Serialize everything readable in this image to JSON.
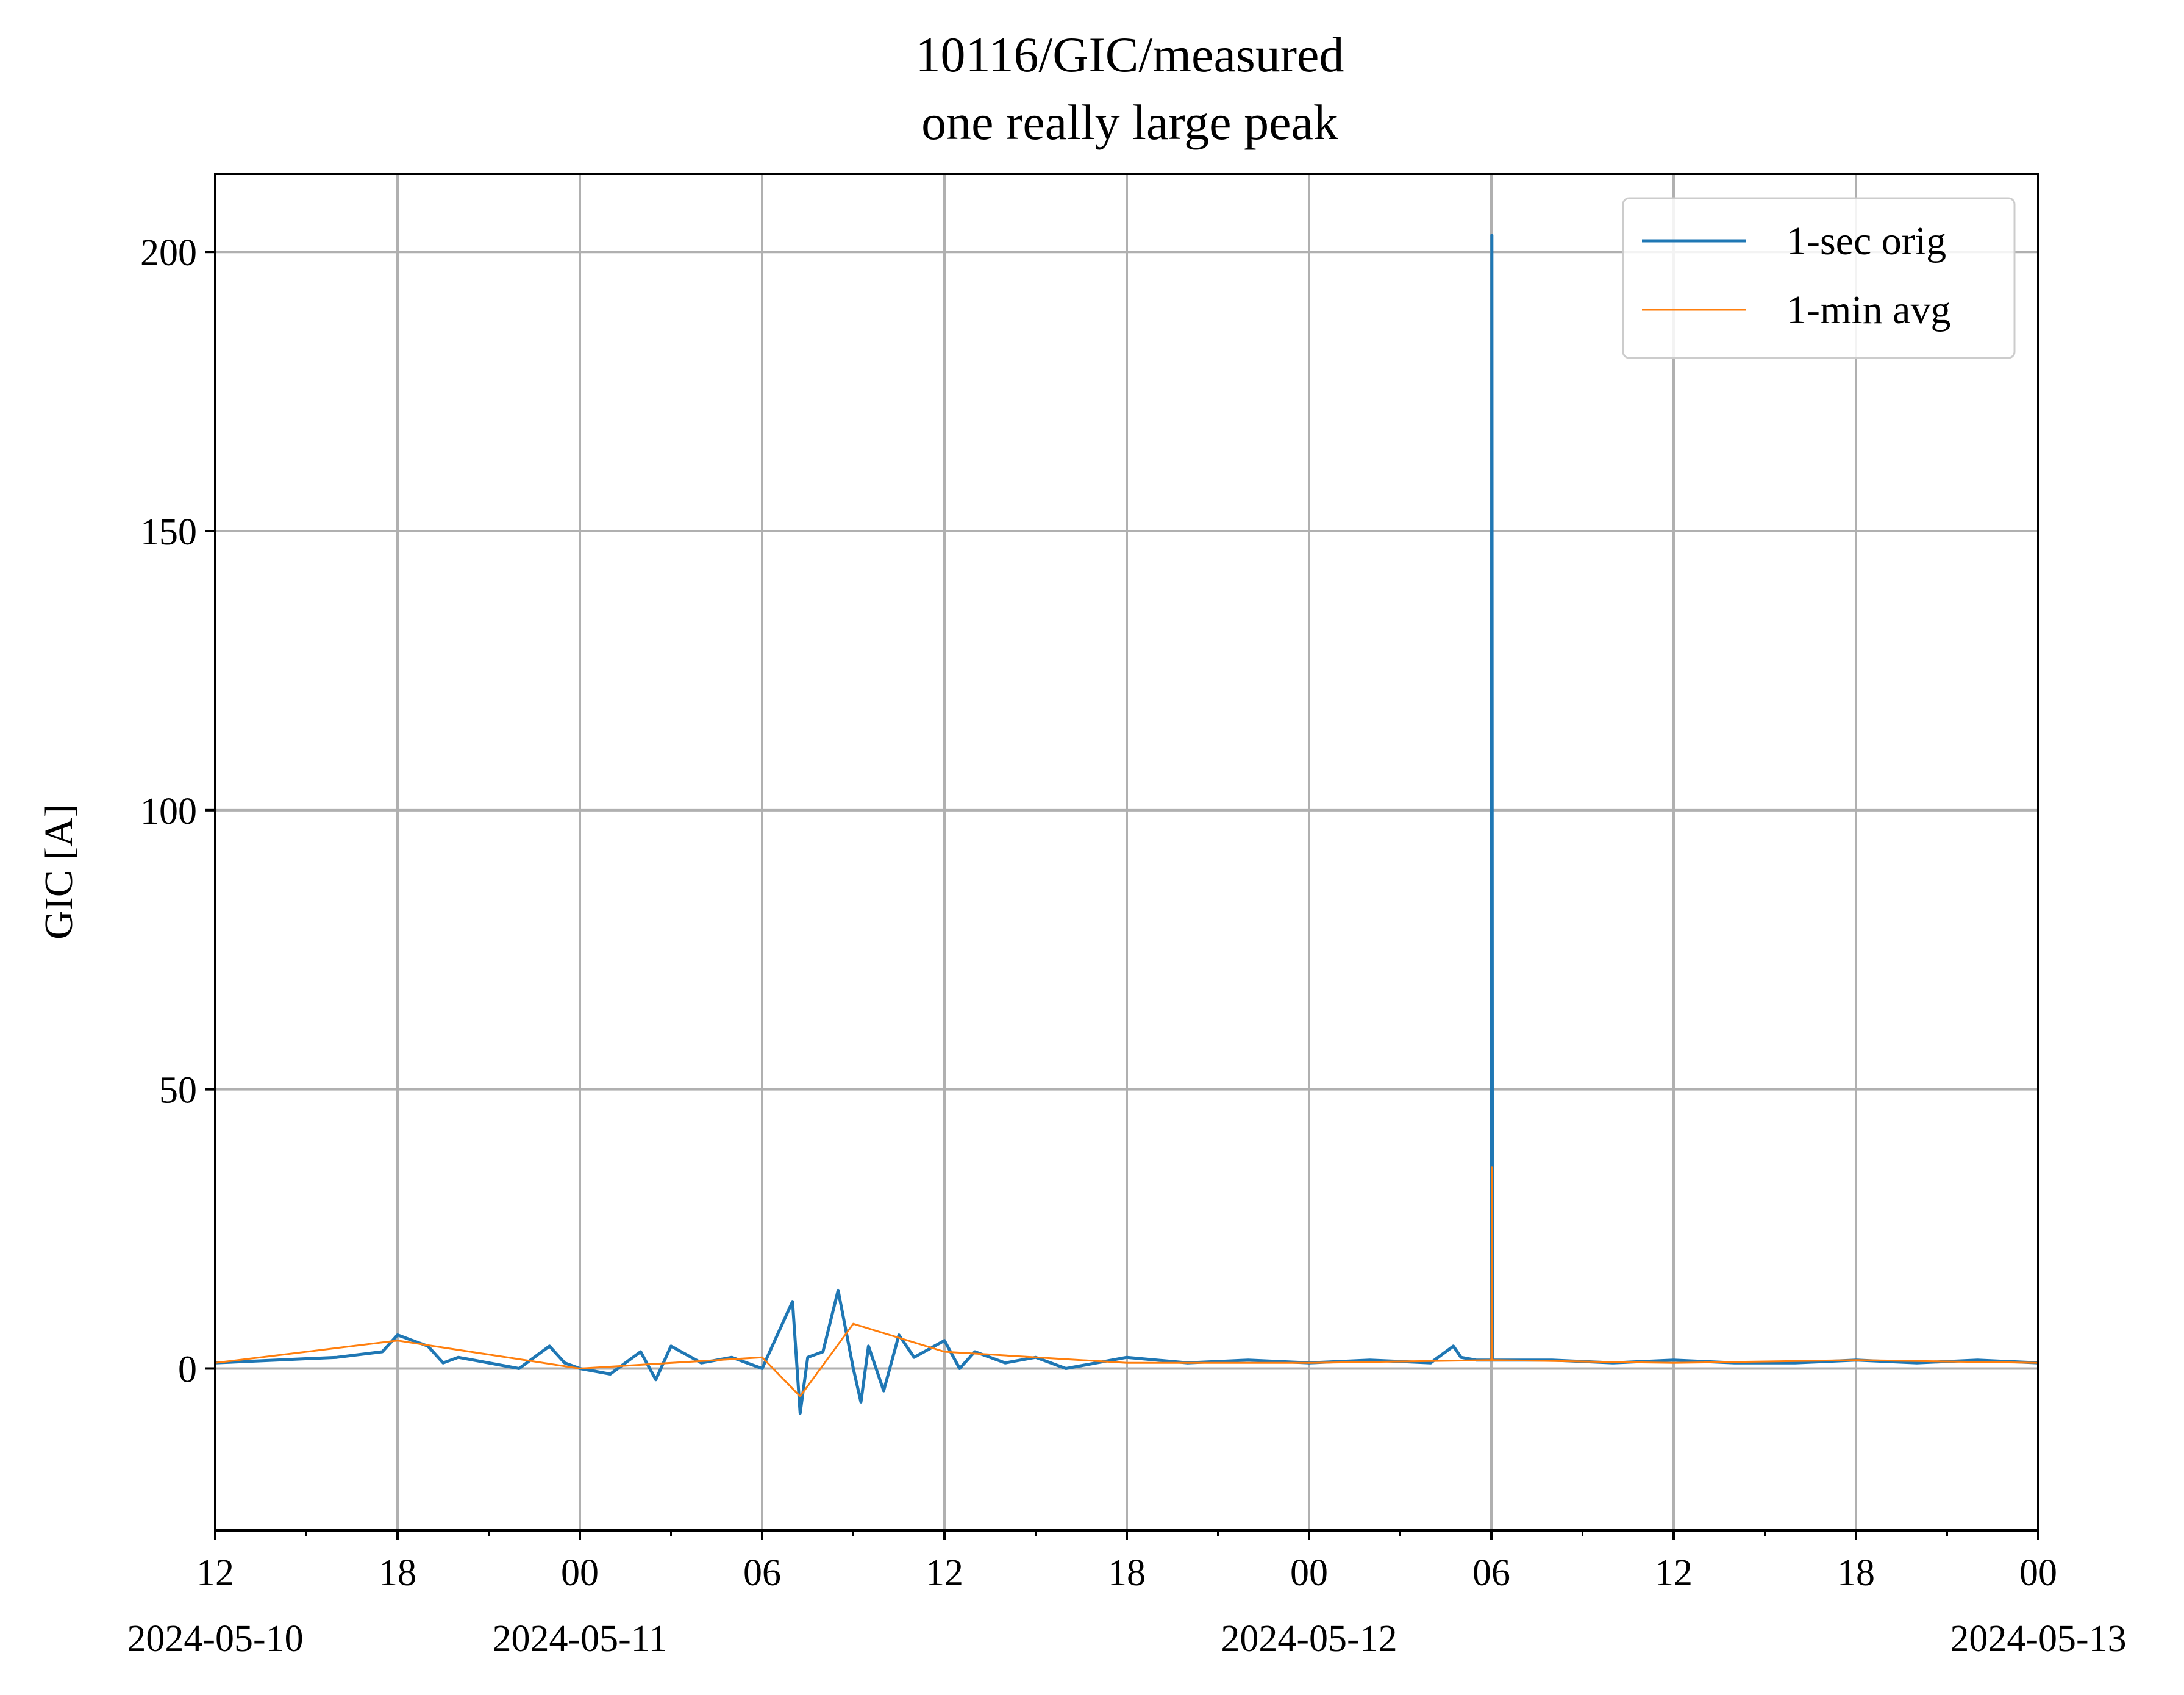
{
  "chart_data": {
    "type": "line",
    "title": "10116/GIC/measured",
    "subtitle": "one really large peak",
    "xlabel": "",
    "ylabel": "GIC [A]",
    "xlim": [
      "2024-05-10 12:00",
      "2024-05-13 00:00"
    ],
    "ylim": [
      -29,
      214
    ],
    "grid": true,
    "legend_position": "top-right",
    "x_ticks": [
      {
        "time": "2024-05-10 12:00",
        "label": "12",
        "date": "2024-05-10"
      },
      {
        "time": "2024-05-10 18:00",
        "label": "18",
        "date": ""
      },
      {
        "time": "2024-05-11 00:00",
        "label": "00",
        "date": "2024-05-11"
      },
      {
        "time": "2024-05-11 06:00",
        "label": "06",
        "date": ""
      },
      {
        "time": "2024-05-11 12:00",
        "label": "12",
        "date": ""
      },
      {
        "time": "2024-05-11 18:00",
        "label": "18",
        "date": ""
      },
      {
        "time": "2024-05-12 00:00",
        "label": "00",
        "date": "2024-05-12"
      },
      {
        "time": "2024-05-12 06:00",
        "label": "06",
        "date": ""
      },
      {
        "time": "2024-05-12 12:00",
        "label": "12",
        "date": ""
      },
      {
        "time": "2024-05-12 18:00",
        "label": "18",
        "date": ""
      },
      {
        "time": "2024-05-13 00:00",
        "label": "00",
        "date": "2024-05-13"
      }
    ],
    "y_ticks": [
      0,
      50,
      100,
      150,
      200
    ],
    "series": [
      {
        "name": "1-sec orig",
        "color": "#1f77b4",
        "x": [
          "2024-05-10 12:00",
          "2024-05-10 14:00",
          "2024-05-10 16:00",
          "2024-05-10 17:30",
          "2024-05-10 18:00",
          "2024-05-10 18:30",
          "2024-05-10 19:00",
          "2024-05-10 19:30",
          "2024-05-10 20:00",
          "2024-05-10 21:00",
          "2024-05-10 22:00",
          "2024-05-10 23:00",
          "2024-05-10 23:30",
          "2024-05-11 00:00",
          "2024-05-11 01:00",
          "2024-05-11 02:00",
          "2024-05-11 02:30",
          "2024-05-11 03:00",
          "2024-05-11 04:00",
          "2024-05-11 05:00",
          "2024-05-11 06:00",
          "2024-05-11 06:30",
          "2024-05-11 07:00",
          "2024-05-11 07:15",
          "2024-05-11 07:30",
          "2024-05-11 08:00",
          "2024-05-11 08:30",
          "2024-05-11 09:00",
          "2024-05-11 09:15",
          "2024-05-11 09:30",
          "2024-05-11 10:00",
          "2024-05-11 10:30",
          "2024-05-11 11:00",
          "2024-05-11 12:00",
          "2024-05-11 12:30",
          "2024-05-11 13:00",
          "2024-05-11 14:00",
          "2024-05-11 15:00",
          "2024-05-11 16:00",
          "2024-05-11 17:00",
          "2024-05-11 18:00",
          "2024-05-11 20:00",
          "2024-05-11 22:00",
          "2024-05-12 00:00",
          "2024-05-12 02:00",
          "2024-05-12 04:00",
          "2024-05-12 04:45",
          "2024-05-12 05:00",
          "2024-05-12 05:30",
          "2024-05-12 06:00",
          "2024-05-12 06:01",
          "2024-05-12 06:02",
          "2024-05-12 08:00",
          "2024-05-12 10:00",
          "2024-05-12 12:00",
          "2024-05-12 14:00",
          "2024-05-12 16:00",
          "2024-05-12 18:00",
          "2024-05-12 20:00",
          "2024-05-12 22:00",
          "2024-05-13 00:00"
        ],
        "y": [
          1,
          1.5,
          2,
          3,
          6,
          5,
          4,
          1,
          2,
          1,
          0,
          4,
          1,
          0,
          -1,
          3,
          -2,
          4,
          1,
          2,
          0,
          6,
          12,
          -8,
          2,
          3,
          14,
          0,
          -6,
          4,
          -4,
          6,
          2,
          5,
          0,
          3,
          1,
          2,
          0,
          1,
          2,
          1,
          1.5,
          1,
          1.5,
          1,
          4,
          2,
          1.5,
          1.5,
          203,
          1.5,
          1.5,
          1,
          1.5,
          1,
          1,
          1.5,
          1,
          1.5,
          1
        ]
      },
      {
        "name": "1-min avg",
        "color": "#ff7f0e",
        "x": [
          "2024-05-10 12:00",
          "2024-05-10 18:00",
          "2024-05-11 00:00",
          "2024-05-11 06:00",
          "2024-05-11 07:15",
          "2024-05-11 09:00",
          "2024-05-11 12:00",
          "2024-05-11 18:00",
          "2024-05-12 00:00",
          "2024-05-12 06:00",
          "2024-05-12 06:01",
          "2024-05-12 06:02",
          "2024-05-12 12:00",
          "2024-05-12 18:00",
          "2024-05-13 00:00"
        ],
        "y": [
          1,
          5,
          0,
          2,
          -5,
          8,
          3,
          1,
          1,
          1.5,
          36,
          1.5,
          1,
          1.5,
          1
        ]
      }
    ]
  }
}
